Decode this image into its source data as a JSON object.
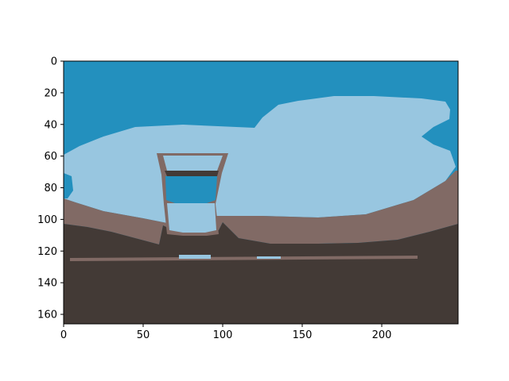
{
  "image_plot": {
    "x_ticks": [
      "0",
      "50",
      "100",
      "150",
      "200"
    ],
    "y_ticks": [
      "0",
      "20",
      "40",
      "60",
      "80",
      "100",
      "120",
      "140",
      "160"
    ],
    "x_tick_values": [
      0,
      50,
      100,
      150,
      200
    ],
    "y_tick_values": [
      0,
      20,
      40,
      60,
      80,
      100,
      120,
      140,
      160
    ],
    "x_range": [
      0,
      248
    ],
    "y_range": [
      0,
      166
    ],
    "y_axis_inverted": true,
    "palette": {
      "deep_blue": "#2390BE",
      "light_blue": "#98C6E0",
      "taupe": "#816A65",
      "dark_brown": "#433A36"
    }
  }
}
